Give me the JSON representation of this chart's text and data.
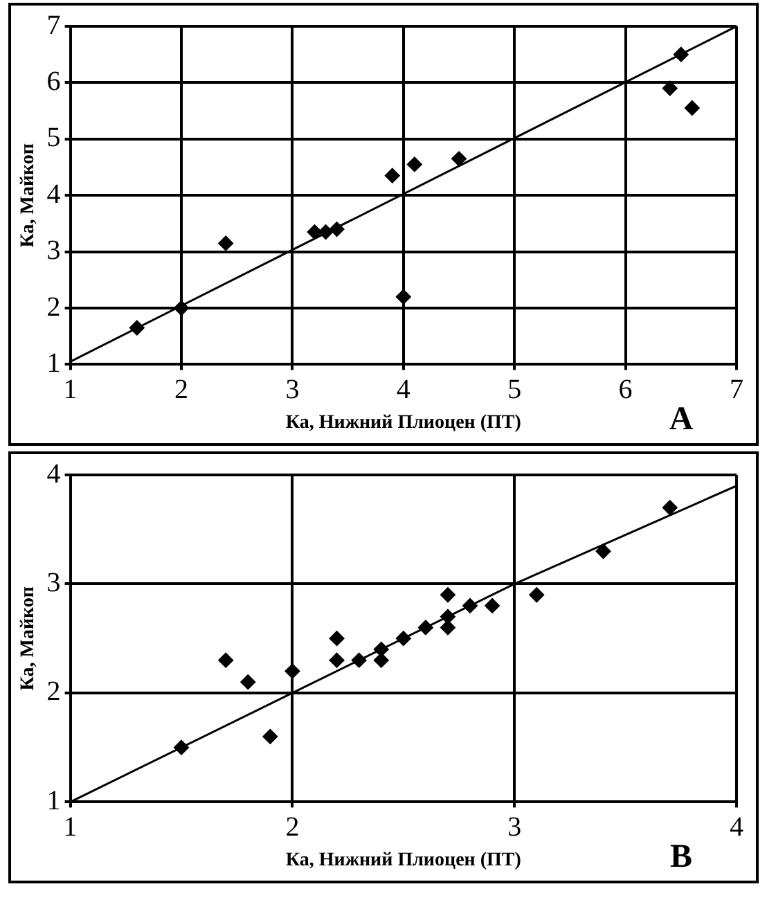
{
  "chart_data": [
    {
      "type": "scatter",
      "xlabel": "Ка, Нижний Плиоцен (ПТ)",
      "ylabel": "Ка, Майкоп",
      "annotations": [
        "A"
      ],
      "xlim": [
        1,
        7
      ],
      "ylim": [
        1,
        7
      ],
      "xticks": [
        1,
        2,
        3,
        4,
        5,
        6,
        7
      ],
      "yticks": [
        1,
        2,
        3,
        4,
        5,
        6,
        7
      ],
      "grid": true,
      "legend": false,
      "marker": "diamond",
      "series": [
        {
          "type": "scatter",
          "color": "#000000",
          "x": [
            1.6,
            2,
            2.4,
            3.2,
            3.3,
            3.4,
            3.9,
            4.1,
            4,
            4.5,
            6.4,
            6.5,
            6.6
          ],
          "values": [
            1.65,
            2,
            3.15,
            3.35,
            3.35,
            3.4,
            4.35,
            4.55,
            2.2,
            4.65,
            5.9,
            6.5,
            5.55
          ]
        },
        {
          "type": "line",
          "color": "#000000",
          "marker": "none",
          "x": [
            1,
            7
          ],
          "values": [
            1.05,
            7
          ]
        }
      ]
    },
    {
      "type": "scatter",
      "xlabel": "Ка, Нижний Плиоцен (ПТ)",
      "ylabel": "Ка, Майкоп",
      "annotations": [
        "B"
      ],
      "xlim": [
        1,
        4
      ],
      "ylim": [
        1,
        4
      ],
      "xticks": [
        1,
        2,
        3,
        4
      ],
      "yticks": [
        1,
        2,
        3,
        4
      ],
      "grid": true,
      "legend": false,
      "marker": "diamond",
      "series": [
        {
          "type": "scatter",
          "color": "#000000",
          "x": [
            1.5,
            1.7,
            1.8,
            1.9,
            2,
            2.2,
            2.2,
            2.3,
            2.4,
            2.4,
            2.5,
            2.6,
            2.7,
            2.7,
            2.7,
            2.8,
            2.9,
            3.1,
            3.4,
            3.7
          ],
          "values": [
            1.5,
            2.3,
            2.1,
            1.6,
            2.2,
            2.5,
            2.3,
            2.3,
            2.4,
            2.3,
            2.5,
            2.6,
            2.9,
            2.7,
            2.6,
            2.8,
            2.8,
            2.9,
            3.3,
            3.7
          ]
        },
        {
          "type": "line",
          "color": "#000000",
          "marker": "none",
          "x": [
            1,
            2,
            3,
            4
          ],
          "values": [
            1,
            2,
            3,
            3.9
          ]
        }
      ]
    }
  ]
}
